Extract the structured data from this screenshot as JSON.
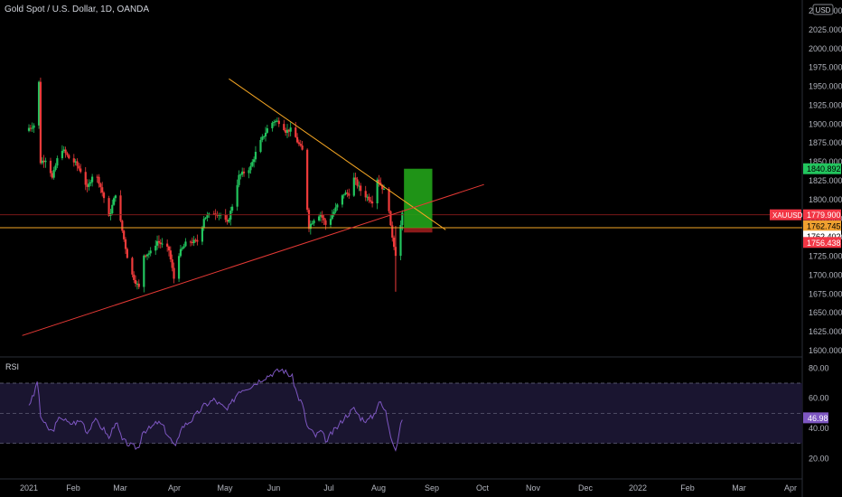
{
  "header": {
    "symbol_title": "Gold Spot / U.S. Dollar, 1D, OANDA",
    "currency_badge": "USD"
  },
  "price_axis": {
    "ticks": [
      "2050.000",
      "2025.000",
      "2000.000",
      "1975.000",
      "1950.000",
      "1925.000",
      "1900.000",
      "1875.000",
      "1850.000",
      "1825.000",
      "1800.000",
      "1775.000",
      "1750.000",
      "1725.000",
      "1700.000",
      "1675.000",
      "1650.000",
      "1625.000",
      "1600.000"
    ],
    "badges": [
      {
        "text": "1840.892",
        "value": 1840.892,
        "color": "#22c55e",
        "text_color": "#000000"
      },
      {
        "text": "1779.900",
        "value": 1779.9,
        "color": "#f23645",
        "text_color": "#ffffff",
        "prefix": "XAUUSD"
      },
      {
        "text": "1762.745",
        "value": 1762.745,
        "color": "#f0a030",
        "text_color": "#000000"
      },
      {
        "text": "1762.402",
        "value": 1762.402,
        "color": "#ffffff",
        "text_color": "#000000"
      },
      {
        "text": "1756.438",
        "value": 1756.438,
        "color": "#f23645",
        "text_color": "#ffffff"
      }
    ]
  },
  "rsi_panel": {
    "label": "RSI",
    "ticks": [
      "80.00",
      "60.00",
      "40.00",
      "20.00"
    ],
    "current_value": "46.98"
  },
  "time_axis": {
    "labels": [
      "2021",
      "Feb",
      "Mar",
      "Apr",
      "May",
      "Jun",
      "Jul",
      "Aug",
      "Sep",
      "Oct",
      "Nov",
      "Dec",
      "2022",
      "Feb",
      "Mar",
      "Apr"
    ]
  },
  "colors": {
    "background": "#000000",
    "bull": "#26a69a",
    "bull_candle": "#22c55e",
    "bear": "#ef3b3b",
    "trendline_up": "#e53935",
    "trendline_down": "#f5a623",
    "horizontal_level": "#f5a623",
    "target_zone": "#22a31a",
    "stop_zone": "#8b1a1a",
    "rsi_line": "#7e57c2",
    "rsi_band": "#1a1530"
  },
  "chart_data": {
    "type": "candlestick",
    "symbol": "XAUUSD",
    "timeframe": "1D",
    "title": "Gold Spot / U.S. Dollar, 1D, OANDA",
    "ylim": [
      1600,
      2050
    ],
    "x_range": [
      "2021-01-01",
      "2022-04-15"
    ],
    "close_path": [
      [
        "2021-01-01",
        1895
      ],
      [
        "2021-01-05",
        1900
      ],
      [
        "2021-01-07",
        1955
      ],
      [
        "2021-01-08",
        1850
      ],
      [
        "2021-01-12",
        1855
      ],
      [
        "2021-01-15",
        1828
      ],
      [
        "2021-01-20",
        1870
      ],
      [
        "2021-01-25",
        1855
      ],
      [
        "2021-01-29",
        1848
      ],
      [
        "2021-02-02",
        1835
      ],
      [
        "2021-02-05",
        1814
      ],
      [
        "2021-02-09",
        1838
      ],
      [
        "2021-02-12",
        1824
      ],
      [
        "2021-02-16",
        1795
      ],
      [
        "2021-02-18",
        1776
      ],
      [
        "2021-02-22",
        1808
      ],
      [
        "2021-02-25",
        1770
      ],
      [
        "2021-03-01",
        1725
      ],
      [
        "2021-03-04",
        1700
      ],
      [
        "2021-03-08",
        1683
      ],
      [
        "2021-03-10",
        1726
      ],
      [
        "2021-03-15",
        1730
      ],
      [
        "2021-03-19",
        1745
      ],
      [
        "2021-03-22",
        1740
      ],
      [
        "2021-03-26",
        1733
      ],
      [
        "2021-03-30",
        1683
      ],
      [
        "2021-04-01",
        1728
      ],
      [
        "2021-04-06",
        1745
      ],
      [
        "2021-04-09",
        1744
      ],
      [
        "2021-04-13",
        1745
      ],
      [
        "2021-04-16",
        1776
      ],
      [
        "2021-04-20",
        1780
      ],
      [
        "2021-04-22",
        1783
      ],
      [
        "2021-04-26",
        1780
      ],
      [
        "2021-04-30",
        1768
      ],
      [
        "2021-05-03",
        1792
      ],
      [
        "2021-05-07",
        1831
      ],
      [
        "2021-05-10",
        1836
      ],
      [
        "2021-05-14",
        1843
      ],
      [
        "2021-05-18",
        1868
      ],
      [
        "2021-05-21",
        1881
      ],
      [
        "2021-05-25",
        1898
      ],
      [
        "2021-05-28",
        1904
      ],
      [
        "2021-06-01",
        1903
      ],
      [
        "2021-06-04",
        1891
      ],
      [
        "2021-06-08",
        1893
      ],
      [
        "2021-06-11",
        1877
      ],
      [
        "2021-06-14",
        1865
      ],
      [
        "2021-06-16",
        1812
      ],
      [
        "2021-06-18",
        1764
      ],
      [
        "2021-06-22",
        1778
      ],
      [
        "2021-06-25",
        1781
      ],
      [
        "2021-06-29",
        1762
      ],
      [
        "2021-07-01",
        1776
      ],
      [
        "2021-07-06",
        1796
      ],
      [
        "2021-07-09",
        1808
      ],
      [
        "2021-07-13",
        1808
      ],
      [
        "2021-07-15",
        1828
      ],
      [
        "2021-07-19",
        1812
      ],
      [
        "2021-07-22",
        1805
      ],
      [
        "2021-07-26",
        1798
      ],
      [
        "2021-07-29",
        1828
      ],
      [
        "2021-08-02",
        1812
      ],
      [
        "2021-08-04",
        1812
      ],
      [
        "2021-08-06",
        1763
      ],
      [
        "2021-08-09",
        1728
      ],
      [
        "2021-08-11",
        1752
      ],
      [
        "2021-08-13",
        1780
      ]
    ],
    "overlays": {
      "resistance_line": {
        "from": [
          "2021-05-01",
          1960
        ],
        "to": [
          "2021-09-08",
          1760
        ]
      },
      "support_line": {
        "from": [
          "2020-12-28",
          1620
        ],
        "to": [
          "2021-10-01",
          1820
        ]
      },
      "horizontal_levels": [
        1779.9,
        1762.745
      ],
      "target_box": {
        "from_date": "2021-08-14",
        "to_date": "2021-08-31",
        "top": 1840.892,
        "bottom": 1762.402
      },
      "stop_box": {
        "from_date": "2021-08-14",
        "to_date": "2021-08-31",
        "top": 1762.402,
        "bottom": 1756.438
      }
    },
    "rsi": {
      "ylim": [
        10,
        85
      ],
      "levels": [
        70,
        50,
        30
      ],
      "path": [
        [
          "2021-01-01",
          56
        ],
        [
          "2021-01-04",
          62
        ],
        [
          "2021-01-06",
          72
        ],
        [
          "2021-01-08",
          48
        ],
        [
          "2021-01-12",
          40
        ],
        [
          "2021-01-15",
          38
        ],
        [
          "2021-01-20",
          48
        ],
        [
          "2021-01-25",
          43
        ],
        [
          "2021-02-02",
          45
        ],
        [
          "2021-02-05",
          37
        ],
        [
          "2021-02-09",
          46
        ],
        [
          "2021-02-16",
          38
        ],
        [
          "2021-02-18",
          33
        ],
        [
          "2021-02-22",
          45
        ],
        [
          "2021-02-26",
          32
        ],
        [
          "2021-03-04",
          28
        ],
        [
          "2021-03-08",
          27
        ],
        [
          "2021-03-10",
          38
        ],
        [
          "2021-03-15",
          40
        ],
        [
          "2021-03-19",
          44
        ],
        [
          "2021-03-22",
          42
        ],
        [
          "2021-03-30",
          27
        ],
        [
          "2021-04-02",
          40
        ],
        [
          "2021-04-09",
          46
        ],
        [
          "2021-04-16",
          55
        ],
        [
          "2021-04-22",
          59
        ],
        [
          "2021-04-30",
          52
        ],
        [
          "2021-05-07",
          65
        ],
        [
          "2021-05-14",
          68
        ],
        [
          "2021-05-21",
          73
        ],
        [
          "2021-05-28",
          77
        ],
        [
          "2021-06-02",
          79
        ],
        [
          "2021-06-08",
          74
        ],
        [
          "2021-06-11",
          62
        ],
        [
          "2021-06-14",
          56
        ],
        [
          "2021-06-17",
          41
        ],
        [
          "2021-06-22",
          35
        ],
        [
          "2021-06-25",
          38
        ],
        [
          "2021-06-29",
          31
        ],
        [
          "2021-07-01",
          36
        ],
        [
          "2021-07-06",
          42
        ],
        [
          "2021-07-09",
          47
        ],
        [
          "2021-07-15",
          53
        ],
        [
          "2021-07-19",
          47
        ],
        [
          "2021-07-23",
          45
        ],
        [
          "2021-07-27",
          49
        ],
        [
          "2021-07-30",
          58
        ],
        [
          "2021-08-03",
          51
        ],
        [
          "2021-08-06",
          36
        ],
        [
          "2021-08-09",
          26
        ],
        [
          "2021-08-11",
          36
        ],
        [
          "2021-08-13",
          47
        ]
      ]
    }
  }
}
